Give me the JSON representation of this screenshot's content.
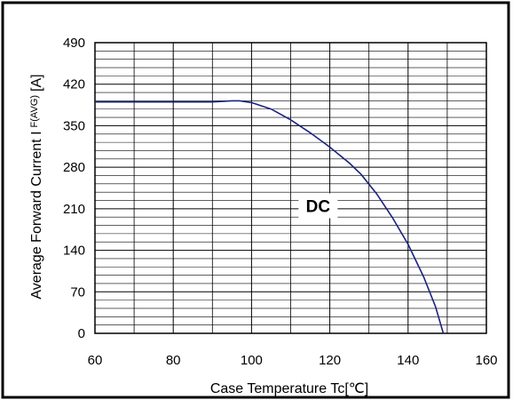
{
  "chart_data": {
    "type": "line",
    "xlabel": "Case Temperature  Tc[℃]",
    "ylabel_main": "Average Forward Current I",
    "ylabel_sub": "F(AVG)",
    "ylabel_unit": "[A]",
    "xlim": [
      60,
      160
    ],
    "ylim": [
      0,
      490
    ],
    "x_ticks": [
      60,
      80,
      100,
      120,
      140,
      160
    ],
    "y_ticks": [
      0,
      70,
      140,
      210,
      280,
      350,
      420,
      490
    ],
    "grid": true,
    "annotation": {
      "text": "DC",
      "x": 117,
      "y": 215
    },
    "series": [
      {
        "x": [
          60,
          70,
          80,
          90,
          95,
          97,
          100,
          105,
          110,
          115,
          120,
          125,
          128,
          132,
          136,
          140,
          144,
          147,
          149
        ],
        "values": [
          390,
          390,
          390,
          390,
          392,
          392,
          389,
          378,
          360,
          338,
          314,
          287,
          268,
          235,
          195,
          150,
          95,
          45,
          0
        ]
      }
    ],
    "colors": {
      "line": "#1a237e",
      "grid": "#000000",
      "frame": "#000000"
    }
  }
}
